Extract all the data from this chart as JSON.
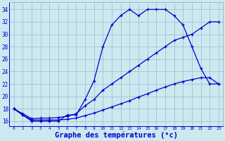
{
  "x_hours": [
    0,
    1,
    2,
    3,
    4,
    5,
    6,
    7,
    8,
    9,
    10,
    11,
    12,
    13,
    14,
    15,
    16,
    17,
    18,
    19,
    20,
    21,
    22,
    23
  ],
  "temp_curve": [
    18,
    17,
    16,
    16,
    16,
    16,
    17,
    17,
    19.5,
    22.5,
    28,
    31.5,
    33,
    34,
    33,
    34,
    34,
    34,
    33,
    31.5,
    28,
    24.5,
    22,
    22
  ],
  "upper_line": [
    18,
    17.2,
    16.4,
    16.5,
    16.5,
    16.6,
    16.8,
    17.2,
    18.5,
    19.5,
    21,
    22,
    23,
    24,
    25,
    26,
    27,
    28,
    29,
    29.5,
    30,
    31,
    32,
    32
  ],
  "lower_line": [
    18,
    17,
    16.2,
    16.2,
    16.2,
    16.2,
    16.3,
    16.5,
    16.9,
    17.3,
    17.8,
    18.3,
    18.8,
    19.3,
    19.9,
    20.4,
    21.0,
    21.5,
    22.0,
    22.4,
    22.7,
    23.0,
    23.0,
    22
  ],
  "bg_color": "#cce9f0",
  "line_color": "#0000cc",
  "grid_color": "#99bbcc",
  "xlabel": "Graphe des températures (°c)",
  "xlabel_fontsize": 7.5,
  "ylabel_ticks": [
    16,
    18,
    20,
    22,
    24,
    26,
    28,
    30,
    32,
    34
  ],
  "xlim": [
    -0.5,
    23.5
  ],
  "ylim": [
    15.2,
    35.2
  ]
}
